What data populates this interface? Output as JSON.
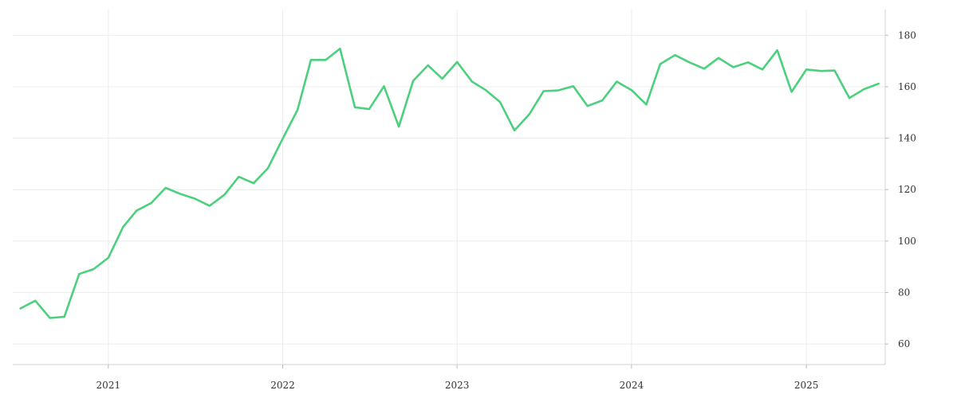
{
  "chart_data": {
    "type": "line",
    "title": "",
    "xlabel": "",
    "ylabel": "",
    "x_tick_labels": [
      "2021",
      "2022",
      "2023",
      "2024",
      "2025"
    ],
    "y_tick_labels": [
      "60",
      "80",
      "100",
      "120",
      "140",
      "160",
      "180"
    ],
    "xlim": [
      "2020-06-15",
      "2025-06-15"
    ],
    "ylim": [
      52,
      190
    ],
    "grid": true,
    "y_axis_position": "right",
    "series_color": "#4cd07d",
    "series": [
      {
        "x": [
          "2020-07-01",
          "2020-08-01",
          "2020-09-01",
          "2020-10-01",
          "2020-11-01",
          "2020-12-01",
          "2021-01-01",
          "2021-02-01",
          "2021-03-01",
          "2021-04-01",
          "2021-05-01",
          "2021-06-01",
          "2021-07-01",
          "2021-08-01",
          "2021-09-01",
          "2021-10-01",
          "2021-11-01",
          "2021-12-01",
          "2022-01-01",
          "2022-02-01",
          "2022-03-01",
          "2022-04-01",
          "2022-05-01",
          "2022-06-01",
          "2022-07-01",
          "2022-08-01",
          "2022-09-01",
          "2022-10-01",
          "2022-11-01",
          "2022-12-01",
          "2023-01-01",
          "2023-02-01",
          "2023-03-01",
          "2023-04-01",
          "2023-05-01",
          "2023-06-01",
          "2023-07-01",
          "2023-08-01",
          "2023-09-01",
          "2023-10-01",
          "2023-11-01",
          "2023-12-01",
          "2024-01-01",
          "2024-02-01",
          "2024-03-01",
          "2024-04-01",
          "2024-05-01",
          "2024-06-01",
          "2024-07-01",
          "2024-08-01",
          "2024-09-01",
          "2024-10-01",
          "2024-11-01",
          "2024-12-01",
          "2025-01-01",
          "2025-02-01",
          "2025-03-01",
          "2025-04-01",
          "2025-05-01",
          "2025-06-01"
        ],
        "y": [
          73.8,
          76.8,
          70.1,
          70.6,
          87.2,
          89.1,
          93.5,
          105.5,
          111.8,
          114.8,
          120.7,
          118.3,
          116.5,
          113.7,
          118.0,
          125.0,
          122.5,
          128.3,
          139.8,
          151.0,
          170.4,
          170.4,
          174.8,
          152.0,
          151.3,
          160.2,
          144.5,
          162.3,
          168.3,
          163.1,
          169.6,
          162.0,
          158.8,
          154.0,
          143.0,
          149.3,
          158.3,
          158.6,
          160.2,
          152.5,
          154.7,
          162.0,
          158.7,
          153.1,
          168.8,
          172.3,
          169.5,
          167.0,
          171.2,
          167.6,
          169.5,
          166.7,
          174.2,
          158.0,
          166.7,
          166.1,
          166.3,
          155.6,
          159.0,
          161.2
        ]
      }
    ]
  }
}
